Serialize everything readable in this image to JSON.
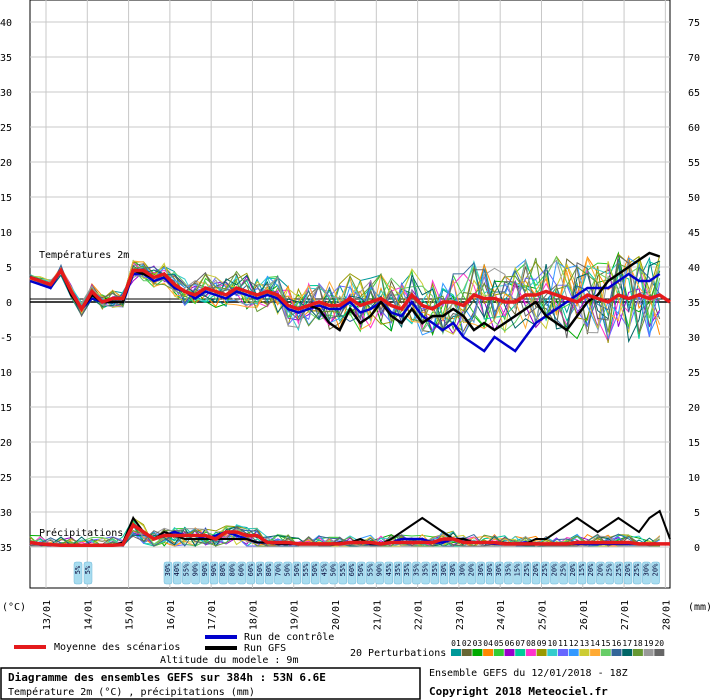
{
  "chart_data": {
    "type": "line",
    "title": "Diagramme des ensembles GEFS sur 384h : 53N 6.6E",
    "subtitle": "Température 2m (°C) , précipitations (mm)",
    "altitude_text": "Altitude du modele : 9m",
    "run_text": "Ensemble GEFS du 12/01/2018 - 18Z",
    "copyright": "Copyright 2018 Meteociel.fr",
    "ylabel_left": "(°C)",
    "ylabel_right": "(mm)",
    "temp_label": "Températures 2m",
    "precip_label": "Précipitations",
    "y_left_ticks": [
      40,
      35,
      30,
      25,
      20,
      15,
      10,
      5,
      0,
      -5,
      -10,
      -15,
      -20,
      -25,
      -30,
      -35
    ],
    "y_right_ticks": [
      75,
      70,
      65,
      60,
      55,
      50,
      45,
      40,
      35,
      30,
      25,
      20,
      15,
      10,
      5,
      0
    ],
    "ylim_left": [
      -35,
      40
    ],
    "x_labels": [
      "13/01",
      "14/01",
      "15/01",
      "16/01",
      "17/01",
      "18/01",
      "19/01",
      "20/01",
      "21/01",
      "22/01",
      "23/01",
      "24/01",
      "25/01",
      "26/01",
      "27/01",
      "28/01"
    ],
    "grid": true,
    "legend": {
      "mean": "Moyenne des scénarios",
      "control": "Run de contrôle",
      "gfs": "Run GFS",
      "perturbations": "20 Perturbations",
      "perturbation_ids": [
        "01",
        "02",
        "03",
        "04",
        "05",
        "06",
        "07",
        "08",
        "09",
        "10",
        "11",
        "12",
        "13",
        "14",
        "15",
        "16",
        "17",
        "18",
        "19",
        "20"
      ],
      "perturbation_colors": [
        "#009999",
        "#666633",
        "#00aa00",
        "#ff8800",
        "#33cc33",
        "#9900cc",
        "#00cc99",
        "#ff33cc",
        "#999900",
        "#33cccc",
        "#6666ff",
        "#3399ff",
        "#cccc33",
        "#ffaa33",
        "#66cc66",
        "#336699",
        "#006666",
        "#669933",
        "#999999",
        "#666666"
      ]
    },
    "precip_prob": [
      "5%",
      "5%",
      "30%",
      "40%",
      "55%",
      "90%",
      "90%",
      "90%",
      "80%",
      "80%",
      "60%",
      "60%",
      "50%",
      "80%",
      "70%",
      "50%",
      "50%",
      "55%",
      "50%",
      "45%",
      "50%",
      "55%",
      "60%",
      "50%",
      "55%",
      "90%",
      "45%",
      "35%",
      "35%",
      "35%",
      "35%",
      "35%",
      "30%",
      "30%",
      "30%",
      "20%",
      "30%",
      "30%",
      "30%",
      "35%",
      "15%",
      "25%",
      "20%",
      "25%",
      "20%",
      "25%",
      "20%",
      "15%",
      "20%",
      "20%",
      "25%",
      "25%",
      "20%",
      "25%",
      "30%",
      "20%"
    ],
    "temp_mean": [
      3.5,
      3,
      2.5,
      4.5,
      1.5,
      -1,
      1.5,
      0,
      0.5,
      0.5,
      4.5,
      4.5,
      3.5,
      4,
      2.5,
      1.5,
      1,
      2,
      1.5,
      1,
      2,
      1.5,
      1,
      1.5,
      1,
      -0.5,
      -1,
      -0.5,
      0,
      -0.5,
      -0.5,
      0.5,
      -0.5,
      0,
      0.5,
      -0.5,
      -1,
      1,
      -0.5,
      -1,
      0,
      0,
      -0.5,
      1,
      0.5,
      0.5,
      0,
      0,
      1,
      1,
      1.5,
      1,
      0.5,
      0,
      1,
      0.5,
      0,
      1,
      0.5,
      1,
      0.5,
      1,
      0,
      0,
      1,
      0,
      -0.5,
      0,
      0,
      -1
    ],
    "temp_control": [
      3,
      2.5,
      2,
      4.5,
      1,
      -1,
      0.5,
      0,
      0,
      0,
      4,
      4,
      3,
      3.5,
      2,
      1.5,
      0.5,
      1.5,
      1,
      0.5,
      1.5,
      1,
      0.5,
      1,
      0.5,
      -1,
      -1.5,
      -1,
      -0.5,
      -1,
      -1,
      0,
      -1.5,
      -1,
      0,
      -1.5,
      -2,
      0,
      -2,
      -3,
      -4,
      -3,
      -5,
      -6,
      -7,
      -5,
      -6,
      -7,
      -5,
      -3,
      -2,
      -1,
      0,
      1,
      2,
      2,
      2,
      3,
      4,
      3,
      3,
      4
    ],
    "temp_gfs": [
      3.5,
      3,
      2.5,
      4.5,
      1,
      -1,
      1,
      0,
      0,
      0,
      4.5,
      4,
      3.5,
      4,
      2.5,
      1.5,
      1,
      2,
      1.5,
      1,
      2,
      1.5,
      1,
      1.5,
      1,
      -0.5,
      -1,
      -0.5,
      -1,
      -3,
      -4,
      -1,
      -3,
      -2,
      0,
      -2,
      -3,
      -1,
      -3,
      -2,
      -2,
      -1,
      -2,
      -4,
      -3,
      -4,
      -3,
      -2,
      -1,
      0,
      -2,
      -3,
      -4,
      -2,
      0,
      1,
      3,
      4,
      5,
      6,
      7,
      6.5
    ],
    "precip_mean": [
      0.5,
      0.3,
      0.2,
      0.1,
      0.1,
      0.1,
      0.1,
      0.1,
      0.1,
      0.2,
      3,
      2,
      1,
      1.5,
      1.5,
      1.5,
      1.5,
      1.5,
      1,
      2,
      2,
      1.5,
      1.5,
      0.5,
      0.5,
      0.5,
      0.3,
      0.3,
      0.3,
      0.3,
      0.3,
      0.5,
      0.5,
      0.5,
      0.3,
      0.5,
      0.5,
      0.5,
      0.5,
      0.5,
      1,
      1,
      0.5,
      0.5,
      0.5,
      0.5,
      0.3,
      0.3,
      0.3,
      0.3,
      0.3,
      0.3,
      0.3,
      0.5,
      0.5,
      0.5,
      0.5,
      0.5,
      0.5,
      0.3,
      0.3,
      0.3,
      0.3,
      0.3
    ],
    "precip_control": [
      0.5,
      0.2,
      0.1,
      0.1,
      0.1,
      0.1,
      0.1,
      0.1,
      0.1,
      0.1,
      3,
      2,
      1,
      1.5,
      2,
      1.5,
      1.5,
      1,
      1.5,
      2,
      1.5,
      1,
      0.5,
      0.5,
      0.3,
      0.3,
      0.3,
      0.3,
      0.3,
      0.3,
      0.3,
      0.5,
      0.5,
      0.3,
      0.3,
      0.5,
      1,
      1,
      1,
      0.5,
      0.5,
      1,
      1,
      0.5,
      0.5,
      0.3,
      0.3,
      0.3,
      0.5,
      0.3,
      0.3,
      0.3,
      0.3,
      0.3,
      0.3,
      0.3,
      0.3,
      0.3,
      0.3,
      0.3,
      0.3,
      0.3
    ],
    "precip_gfs": [
      0.5,
      0.3,
      0.2,
      0.1,
      0.1,
      0.1,
      0.1,
      0.1,
      0.1,
      0.5,
      4,
      2,
      1,
      2,
      1.5,
      1,
      1,
      1,
      1,
      1,
      1,
      1,
      0.5,
      0.5,
      0.3,
      0.3,
      0.3,
      0.3,
      0.3,
      0.3,
      0.5,
      0.5,
      1,
      0.3,
      0.3,
      1,
      2,
      3,
      4,
      3,
      2,
      1,
      1,
      0.5,
      0.5,
      0.5,
      0.5,
      0.3,
      0.3,
      1,
      1,
      2,
      3,
      4,
      3,
      2,
      3,
      4,
      3,
      2,
      4,
      5,
      1
    ]
  }
}
